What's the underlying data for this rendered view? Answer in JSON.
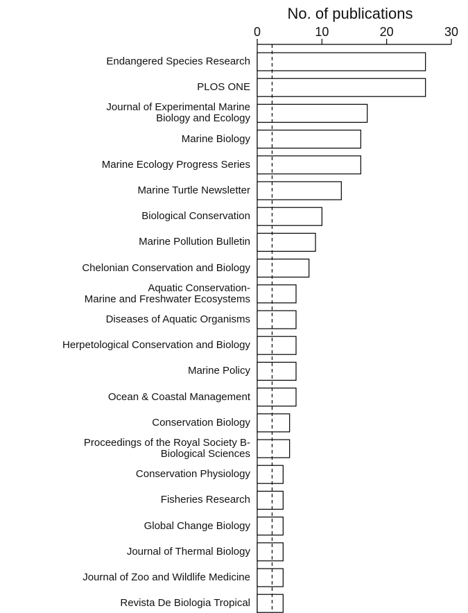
{
  "chart_data": {
    "type": "bar",
    "orientation": "horizontal",
    "xlabel": "No. of publications",
    "categories": [
      "Endangered Species Research",
      "PLOS ONE",
      "Journal of Experimental Marine\nBiology and Ecology",
      "Marine Biology",
      "Marine Ecology Progress Series",
      "Marine Turtle Newsletter",
      "Biological Conservation",
      "Marine Pollution Bulletin",
      "Chelonian Conservation and Biology",
      "Aquatic Conservation-\nMarine and Freshwater Ecosystems",
      "Diseases of Aquatic Organisms",
      "Herpetological Conservation and Biology",
      "Marine Policy",
      "Ocean & Coastal Management",
      "Conservation Biology",
      "Proceedings of the Royal Society B-\nBiological Sciences",
      "Conservation Physiology",
      "Fisheries Research",
      "Global Change Biology",
      "Journal of Thermal Biology",
      "Journal of Zoo and Wildlife Medicine",
      "Revista De Biologia Tropical"
    ],
    "values": [
      26,
      26,
      17,
      16,
      16,
      13,
      10,
      9,
      8,
      6,
      6,
      6,
      6,
      6,
      5,
      5,
      4,
      4,
      4,
      4,
      4,
      4
    ],
    "color": "#ffffff",
    "edgecolor": "#000000",
    "xlim": [
      0,
      30
    ],
    "xticks": [
      0,
      10,
      20,
      30
    ],
    "reference_line": 2.3
  }
}
